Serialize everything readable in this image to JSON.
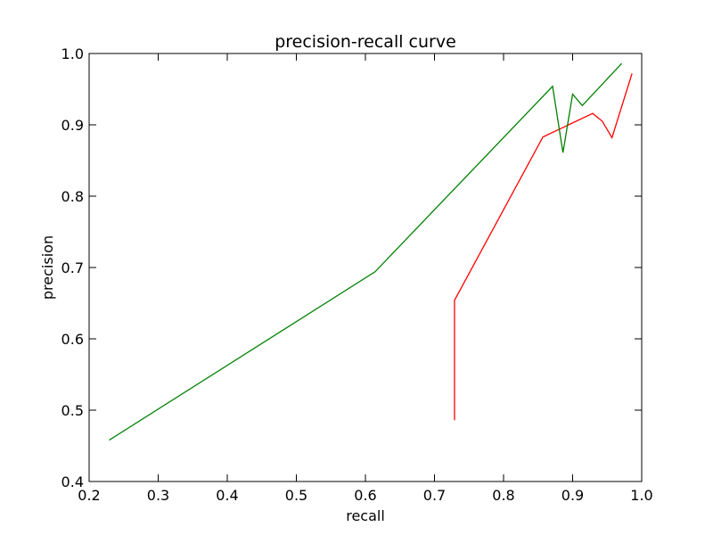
{
  "chart_data": {
    "type": "line",
    "title": "precision-recall curve",
    "xlabel": "recall",
    "ylabel": "precision",
    "xlim": [
      0.2,
      1.0
    ],
    "ylim": [
      0.4,
      1.0
    ],
    "xticks": [
      "0.2",
      "0.3",
      "0.4",
      "0.5",
      "0.6",
      "0.7",
      "0.8",
      "0.9",
      "1.0"
    ],
    "yticks": [
      "0.4",
      "0.5",
      "0.6",
      "0.7",
      "0.8",
      "0.9",
      "1.0"
    ],
    "grid": false,
    "series": [
      {
        "color": "#ff0000",
        "x": [
          0.729,
          0.729,
          0.857,
          0.929,
          0.943,
          0.957,
          0.986
        ],
        "y": [
          0.486,
          0.654,
          0.883,
          0.916,
          0.905,
          0.882,
          0.972
        ]
      },
      {
        "color": "#008000",
        "x": [
          0.229,
          0.614,
          0.871,
          0.886,
          0.9,
          0.914,
          0.971
        ],
        "y": [
          0.458,
          0.694,
          0.954,
          0.861,
          0.943,
          0.927,
          0.986
        ]
      }
    ]
  }
}
